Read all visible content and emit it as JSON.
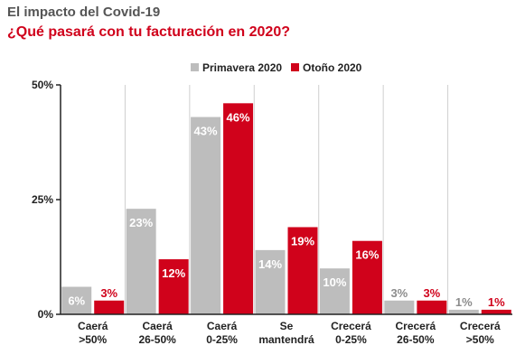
{
  "header": {
    "supertitle": "El impacto del Covid-19",
    "title": "¿Qué pasará con tu facturación en 2020?"
  },
  "colors": {
    "primavera": "#bdbdbd",
    "otono": "#d0021b",
    "primavera_label_outside": "#8c8c8c",
    "axis": "#222222",
    "grid": "#cfcfcf"
  },
  "chart_data": {
    "type": "bar",
    "categories": [
      [
        "Caerá",
        ">50%"
      ],
      [
        "Caerá",
        "26-50%"
      ],
      [
        "Caerá",
        "0-25%"
      ],
      [
        "Se",
        "mantendrá"
      ],
      [
        "Crecerá",
        "0-25%"
      ],
      [
        "Crecerá",
        "26-50%"
      ],
      [
        "Crecerá",
        ">50%"
      ]
    ],
    "series": [
      {
        "name": "Primavera 2020",
        "values": [
          6,
          23,
          43,
          14,
          10,
          3,
          1
        ],
        "labels": [
          "6%",
          "23%",
          "43%",
          "14%",
          "10%",
          "3%",
          "1%"
        ]
      },
      {
        "name": "Otoño 2020",
        "values": [
          3,
          12,
          46,
          19,
          16,
          3,
          1
        ],
        "labels": [
          "3%",
          "12%",
          "46%",
          "19%",
          "16%",
          "3%",
          "1%"
        ]
      }
    ],
    "ylim": [
      0,
      50
    ],
    "yticks": [
      0,
      25,
      50
    ],
    "ytick_labels": [
      "0%",
      "25%",
      "50%"
    ],
    "legend_position": "top-center",
    "grid": "vertical category separators"
  }
}
